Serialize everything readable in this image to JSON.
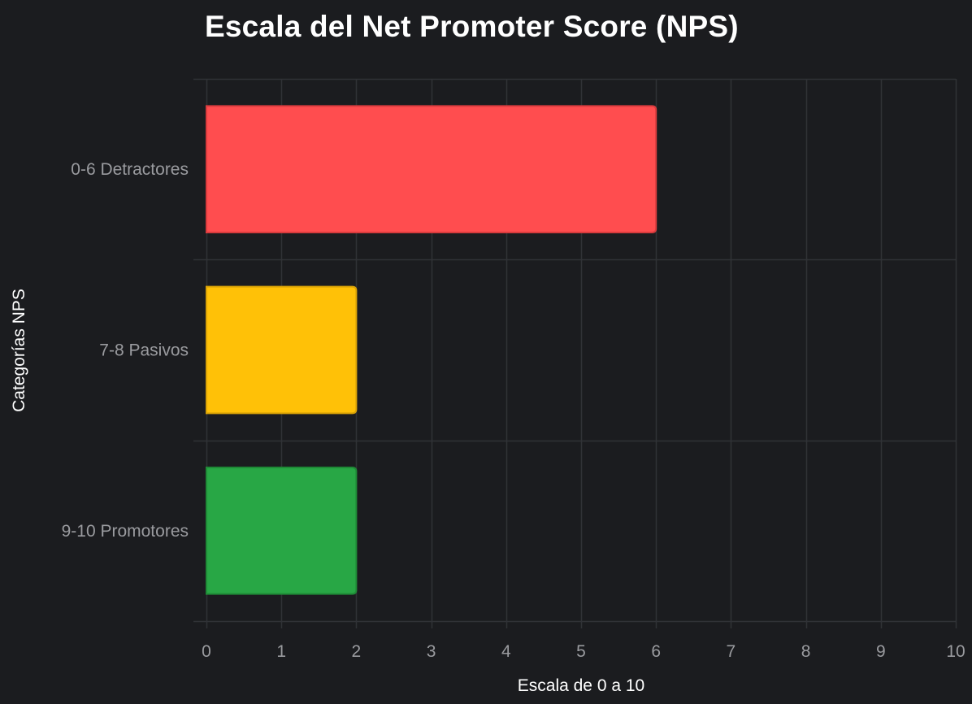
{
  "chart_data": {
    "type": "bar",
    "orientation": "horizontal",
    "title": "Escala del Net Promoter Score (NPS)",
    "xlabel": "Escala de 0 a 10",
    "ylabel": "Categorías NPS",
    "xlim": [
      0,
      10
    ],
    "xticks": [
      "0",
      "1",
      "2",
      "3",
      "4",
      "5",
      "6",
      "7",
      "8",
      "9",
      "10"
    ],
    "categories": [
      "0-6 Detractores",
      "7-8 Pasivos",
      "9-10 Promotores"
    ],
    "values": [
      6,
      2,
      2
    ],
    "colors": [
      "#ff4d4f",
      "#ffc107",
      "#28a745"
    ],
    "border_colors": [
      "#d93b3d",
      "#d9a206",
      "#1f8a36"
    ],
    "grid": true,
    "legend": "none"
  }
}
